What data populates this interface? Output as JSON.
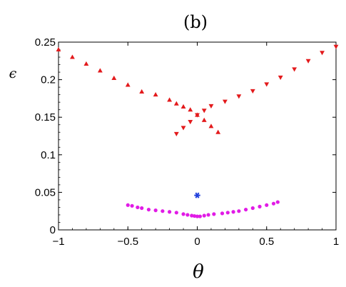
{
  "chart_data": {
    "type": "scatter",
    "title": "(b)",
    "xlabel": "θ",
    "ylabel": "ϵ",
    "xlim": [
      -1,
      1
    ],
    "ylim": [
      0,
      0.25
    ],
    "x_ticks": [
      -1,
      -0.5,
      0,
      0.5,
      1
    ],
    "x_tick_labels": [
      "−1",
      "−0.5",
      "0",
      "0.5",
      "1"
    ],
    "y_ticks": [
      0,
      0.05,
      0.1,
      0.15,
      0.2,
      0.25
    ],
    "y_tick_labels": [
      "0",
      "0.05",
      "0.1",
      "0.15",
      "0.2",
      "0.25"
    ],
    "grid": false,
    "series": [
      {
        "marker": "triangle-up",
        "color": "#e31a1c",
        "points": [
          [
            -1.0,
            0.24
          ],
          [
            -0.9,
            0.23
          ],
          [
            -0.8,
            0.221
          ],
          [
            -0.7,
            0.212
          ],
          [
            -0.6,
            0.202
          ],
          [
            -0.5,
            0.193
          ],
          [
            -0.4,
            0.184
          ],
          [
            -0.3,
            0.18
          ],
          [
            -0.2,
            0.173
          ],
          [
            -0.15,
            0.168
          ],
          [
            -0.1,
            0.164
          ],
          [
            -0.05,
            0.16
          ],
          [
            0.0,
            0.153
          ],
          [
            0.05,
            0.146
          ],
          [
            0.1,
            0.138
          ],
          [
            0.15,
            0.13
          ]
        ]
      },
      {
        "marker": "triangle-down",
        "color": "#e31a1c",
        "points": [
          [
            -0.15,
            0.128
          ],
          [
            -0.1,
            0.136
          ],
          [
            -0.05,
            0.144
          ],
          [
            0.0,
            0.153
          ],
          [
            0.05,
            0.159
          ],
          [
            0.1,
            0.165
          ],
          [
            0.2,
            0.171
          ],
          [
            0.3,
            0.178
          ],
          [
            0.4,
            0.185
          ],
          [
            0.5,
            0.194
          ],
          [
            0.6,
            0.203
          ],
          [
            0.7,
            0.214
          ],
          [
            0.8,
            0.225
          ],
          [
            0.9,
            0.236
          ],
          [
            1.0,
            0.244
          ]
        ]
      },
      {
        "marker": "star",
        "color": "#1f3fdc",
        "points": [
          [
            0.0,
            0.046
          ]
        ]
      },
      {
        "marker": "circle",
        "color": "#e11be6",
        "points": [
          [
            -0.5,
            0.033
          ],
          [
            -0.47,
            0.032
          ],
          [
            -0.43,
            0.03
          ],
          [
            -0.4,
            0.029
          ],
          [
            -0.35,
            0.027
          ],
          [
            -0.3,
            0.026
          ],
          [
            -0.25,
            0.025
          ],
          [
            -0.2,
            0.024
          ],
          [
            -0.15,
            0.023
          ],
          [
            -0.1,
            0.021
          ],
          [
            -0.07,
            0.02
          ],
          [
            -0.04,
            0.019
          ],
          [
            -0.02,
            0.0185
          ],
          [
            0.0,
            0.018
          ],
          [
            0.02,
            0.018
          ],
          [
            0.05,
            0.019
          ],
          [
            0.08,
            0.02
          ],
          [
            0.12,
            0.021
          ],
          [
            0.18,
            0.022
          ],
          [
            0.22,
            0.023
          ],
          [
            0.26,
            0.024
          ],
          [
            0.3,
            0.025
          ],
          [
            0.35,
            0.027
          ],
          [
            0.4,
            0.029
          ],
          [
            0.45,
            0.031
          ],
          [
            0.5,
            0.033
          ],
          [
            0.55,
            0.035
          ],
          [
            0.58,
            0.037
          ]
        ]
      }
    ]
  }
}
